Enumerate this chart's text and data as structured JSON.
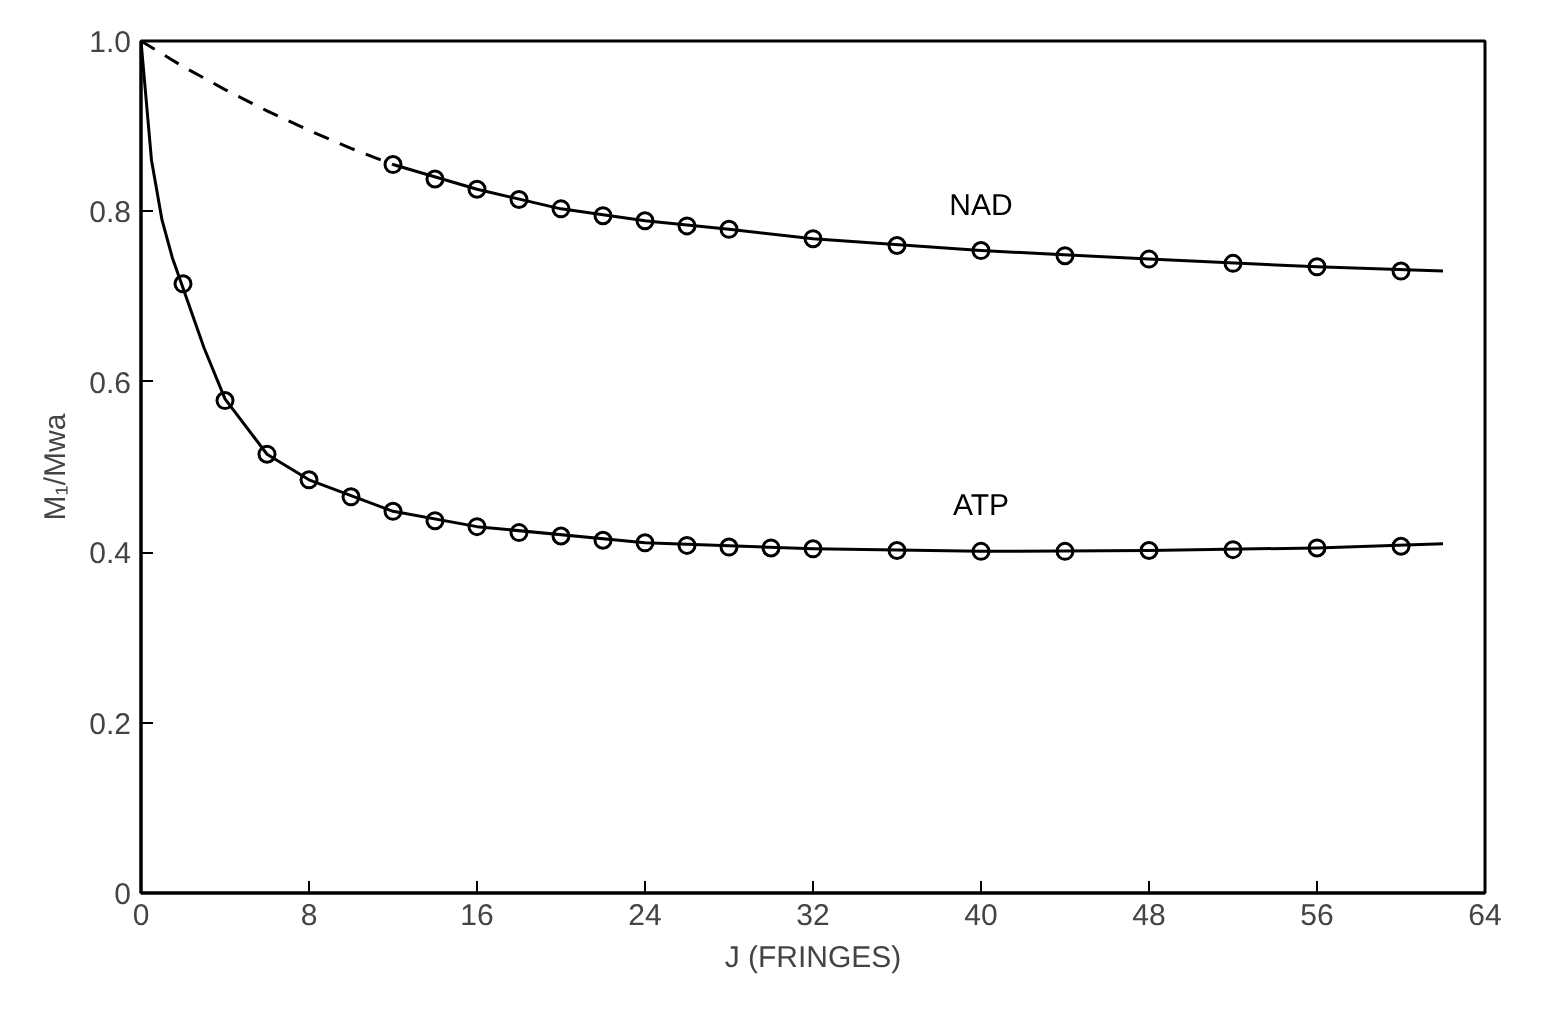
{
  "chart_data": {
    "type": "scatter",
    "xlabel": "J (FRINGES)",
    "ylabel": "M₁/Mwa",
    "xlim": [
      0,
      64
    ],
    "xticks": [
      0,
      8,
      16,
      24,
      32,
      40,
      48,
      56,
      64
    ],
    "ylim": [
      0,
      1.0
    ],
    "yticks": [
      0,
      0.2,
      0.4,
      0.6,
      0.8,
      {
        "value": 1.0,
        "label": "1.0"
      }
    ],
    "grid": false,
    "series": [
      {
        "name": "ATP",
        "marker": "circle",
        "color": "#000000",
        "x": [
          2,
          4,
          6,
          8,
          10,
          12,
          14,
          16,
          18,
          20,
          22,
          24,
          26,
          28,
          30,
          32,
          36,
          40,
          44,
          48,
          52,
          56,
          60
        ],
        "values": [
          0.715,
          0.578,
          0.515,
          0.485,
          0.465,
          0.448,
          0.437,
          0.43,
          0.423,
          0.419,
          0.414,
          0.411,
          0.408,
          0.406,
          0.405,
          0.404,
          0.402,
          0.401,
          0.401,
          0.402,
          0.403,
          0.405,
          0.407
        ]
      },
      {
        "type": "line",
        "line_style": "solid",
        "color": "#000000",
        "x": [
          0,
          0.5,
          1,
          1.5,
          2,
          3,
          4,
          6,
          8,
          12,
          16,
          24,
          32,
          40,
          48,
          56,
          62
        ],
        "values": [
          1.0,
          0.86,
          0.79,
          0.745,
          0.71,
          0.64,
          0.58,
          0.515,
          0.485,
          0.448,
          0.43,
          0.411,
          0.404,
          0.401,
          0.402,
          0.405,
          0.41
        ]
      },
      {
        "name": "NAD",
        "marker": "circle",
        "color": "#000000",
        "x": [
          12,
          14,
          16,
          18,
          20,
          22,
          24,
          26,
          28,
          32,
          36,
          40,
          44,
          48,
          52,
          56,
          60
        ],
        "values": [
          0.855,
          0.838,
          0.826,
          0.814,
          0.803,
          0.795,
          0.789,
          0.783,
          0.779,
          0.768,
          0.76,
          0.754,
          0.748,
          0.744,
          0.739,
          0.735,
          0.73
        ]
      },
      {
        "type": "line",
        "line_style": "solid",
        "color": "#000000",
        "x": [
          12,
          16,
          20,
          24,
          28,
          32,
          40,
          48,
          56,
          62
        ],
        "values": [
          0.855,
          0.826,
          0.803,
          0.789,
          0.779,
          0.768,
          0.754,
          0.744,
          0.735,
          0.73
        ]
      },
      {
        "type": "line",
        "line_style": "dashed",
        "color": "#000000",
        "x": [
          0,
          2,
          4,
          6,
          8,
          10,
          12
        ],
        "values": [
          1.0,
          0.97,
          0.943,
          0.918,
          0.895,
          0.874,
          0.855
        ]
      }
    ]
  }
}
